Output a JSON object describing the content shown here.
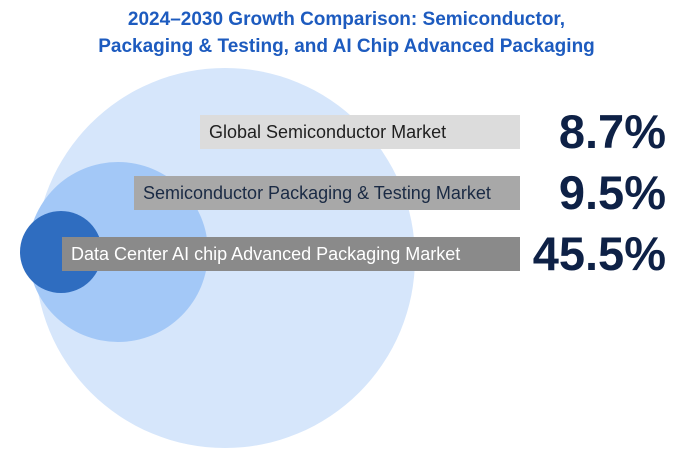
{
  "title": {
    "line1": "2024–2030 Growth Comparison: Semiconductor,",
    "line2": "Packaging & Testing, and AI Chip Advanced Packaging"
  },
  "colors": {
    "outer_circle": "#d6e6fb",
    "middle_circle": "#a3c8f7",
    "inner_circle": "#2f6dc0",
    "title": "#1d5bbf",
    "value_text": "#0e2146"
  },
  "chart_data": {
    "type": "bubble-comparison",
    "title": "2024–2030 Growth Comparison: Semiconductor, Packaging & Testing, and AI Chip Advanced Packaging",
    "unit": "%",
    "metric": "2024–2030 growth rate",
    "series": [
      {
        "label": "Global Semiconductor Market",
        "value": 8.7,
        "display": "8.7%"
      },
      {
        "label": "Semiconductor Packaging & Testing Market",
        "value": 9.5,
        "display": "9.5%"
      },
      {
        "label": "Data Center AI chip Advanced Packaging Market",
        "value": 45.5,
        "display": "45.5%"
      }
    ]
  }
}
